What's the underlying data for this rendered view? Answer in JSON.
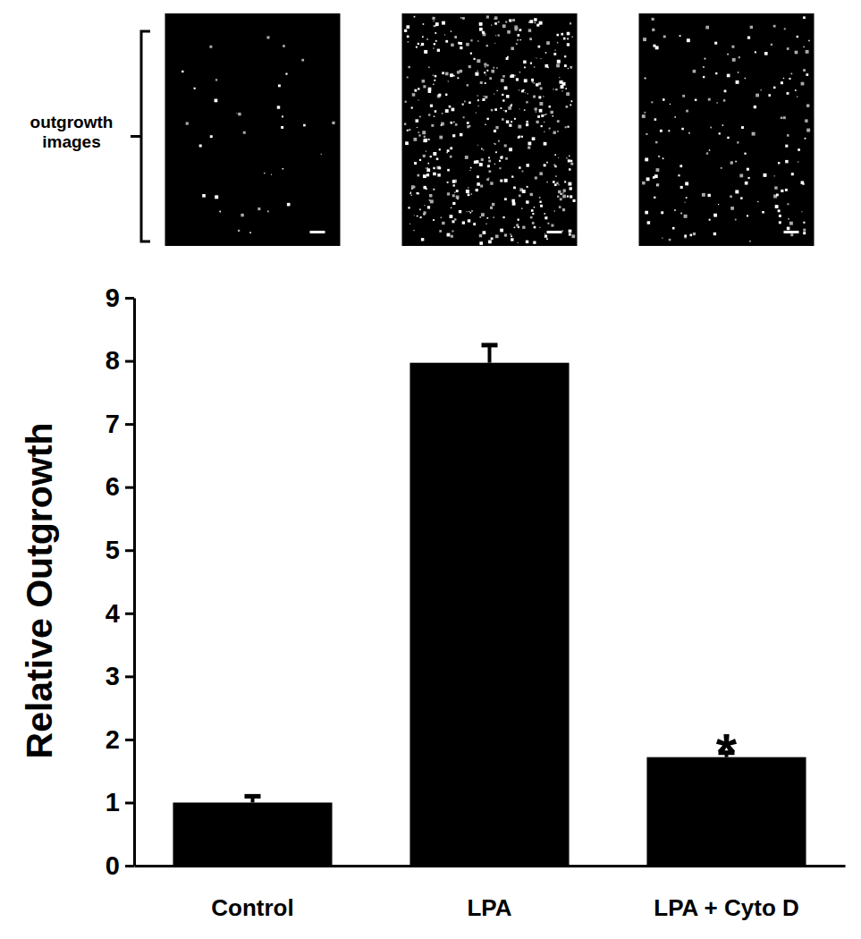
{
  "chart_data": {
    "type": "bar",
    "categories": [
      "Control",
      "LPA",
      "LPA + Cyto D"
    ],
    "values": [
      1.0,
      7.97,
      1.72
    ],
    "errors": [
      0.1,
      0.28,
      0.07
    ],
    "color": "#000000",
    "ylabel": "Relative Outgrowth",
    "ylim": [
      0,
      9
    ],
    "yticks": [
      0,
      1,
      2,
      3,
      4,
      5,
      6,
      7,
      8,
      9
    ],
    "grid": false,
    "annotations": [
      {
        "text": "*",
        "category": "LPA + Cyto D"
      }
    ],
    "image_label": "outgrowth images"
  }
}
